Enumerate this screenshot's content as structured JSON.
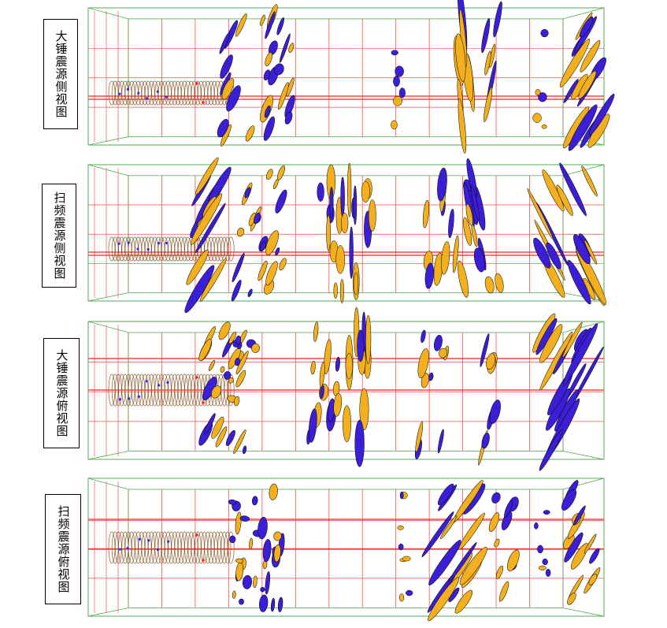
{
  "panels": [
    {
      "label": "大锤震源侧视图",
      "view": "side"
    },
    {
      "label": "扫频震源侧视图",
      "view": "side"
    },
    {
      "label": "大锤震源俯视图",
      "view": "top"
    },
    {
      "label": "扫频震源俯视图",
      "view": "top"
    }
  ],
  "colors": {
    "box": "#55aa55",
    "grid": "#ff4d4d",
    "tunnel": "#8b5a2b",
    "blue": "#3a1fd6",
    "orange": "#f2b01e",
    "outline": "#000000",
    "marker_red": "#ff2020",
    "marker_blue": "#2a2aff"
  }
}
